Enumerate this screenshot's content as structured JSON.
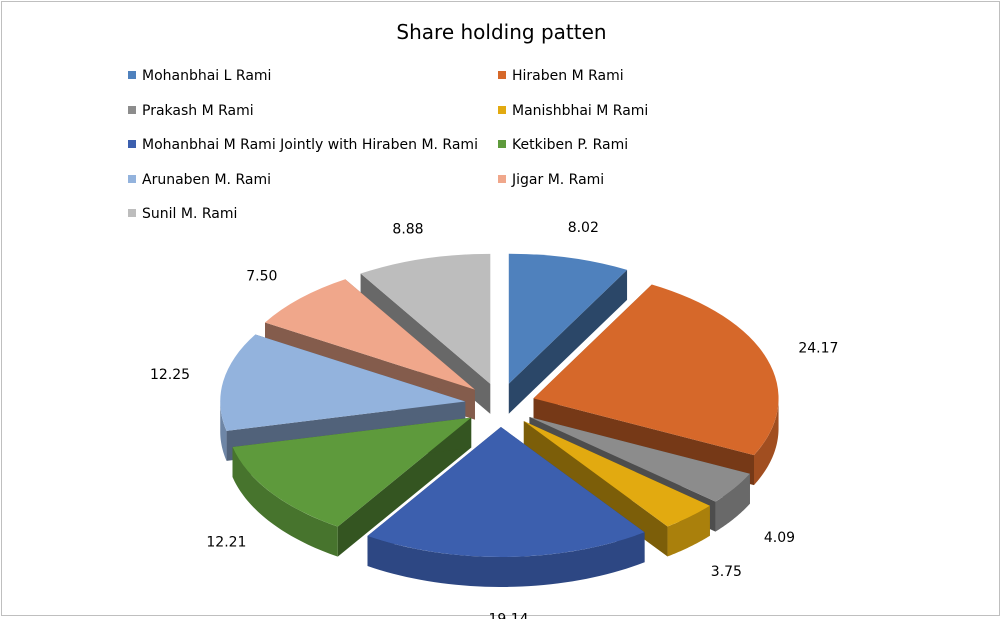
{
  "chart_data": {
    "type": "pie",
    "title": "Share holding patten",
    "legend_position": "top",
    "categories": [
      "Mohanbhai L Rami",
      "Hiraben M Rami",
      "Prakash M Rami",
      "Manishbhai M Rami",
      "Mohanbhai M Rami Jointly with Hiraben M. Rami",
      "Ketkiben P. Rami",
      "Arunaben M. Rami",
      "Jigar M. Rami",
      "Sunil M. Rami"
    ],
    "values": [
      8.02,
      24.17,
      4.09,
      3.75,
      19.14,
      12.21,
      12.25,
      7.5,
      8.88
    ],
    "value_labels": [
      "8.02",
      "24.17",
      "4.09",
      "3.75",
      "19.14",
      "12.21",
      "12.25",
      "7.50",
      "8.88"
    ],
    "colors": [
      "#4f81bd",
      "#d6682a",
      "#8c8c8c",
      "#e2aa10",
      "#3c5fae",
      "#5e9a3c",
      "#93b3dd",
      "#f0a78b",
      "#bdbdbd"
    ],
    "style": "3d-exploded"
  }
}
